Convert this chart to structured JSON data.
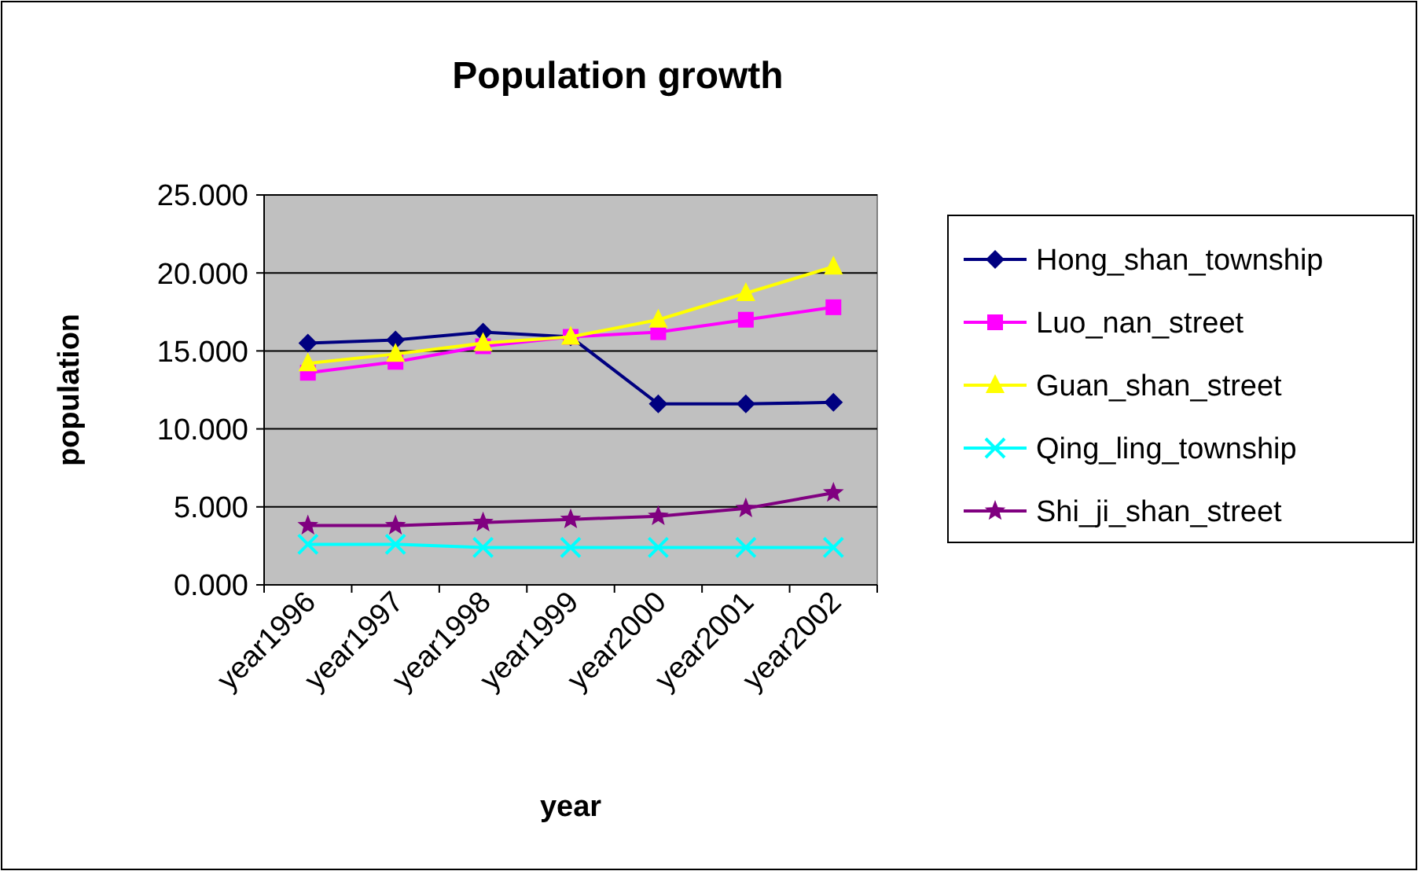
{
  "chart_data": {
    "type": "line",
    "title": "Population growth",
    "xlabel": "year",
    "ylabel": "population",
    "categories": [
      "year1996",
      "year1997",
      "year1998",
      "year1999",
      "year2000",
      "year2001",
      "year2002"
    ],
    "ylim": [
      0,
      25
    ],
    "yticks": [
      {
        "value": 0,
        "label": "0.000"
      },
      {
        "value": 5,
        "label": "5.000"
      },
      {
        "value": 10,
        "label": "10.000"
      },
      {
        "value": 15,
        "label": "15.000"
      },
      {
        "value": 20,
        "label": "20.000"
      },
      {
        "value": 25,
        "label": "25.000"
      }
    ],
    "grid": "y",
    "legend": "right",
    "series": [
      {
        "name": "Hong_shan_township",
        "color": "#000080",
        "marker": "diamond",
        "values": [
          15.5,
          15.7,
          16.2,
          15.9,
          11.6,
          11.6,
          11.7
        ]
      },
      {
        "name": "Luo_nan_street",
        "color": "#ff00ff",
        "marker": "square",
        "values": [
          13.6,
          14.3,
          15.3,
          15.9,
          16.2,
          17.0,
          17.8
        ]
      },
      {
        "name": "Guan_shan_street",
        "color": "#ffff00",
        "marker": "triangle",
        "values": [
          14.2,
          14.8,
          15.5,
          15.9,
          17.0,
          18.7,
          20.4
        ]
      },
      {
        "name": "Qing_ling_township",
        "color": "#00ffff",
        "marker": "cross",
        "values": [
          2.6,
          2.6,
          2.4,
          2.4,
          2.4,
          2.4,
          2.4
        ]
      },
      {
        "name": "Shi_ji_shan_street",
        "color": "#800080",
        "marker": "star",
        "values": [
          3.8,
          3.8,
          4.0,
          4.2,
          4.4,
          4.9,
          5.9
        ]
      }
    ]
  }
}
